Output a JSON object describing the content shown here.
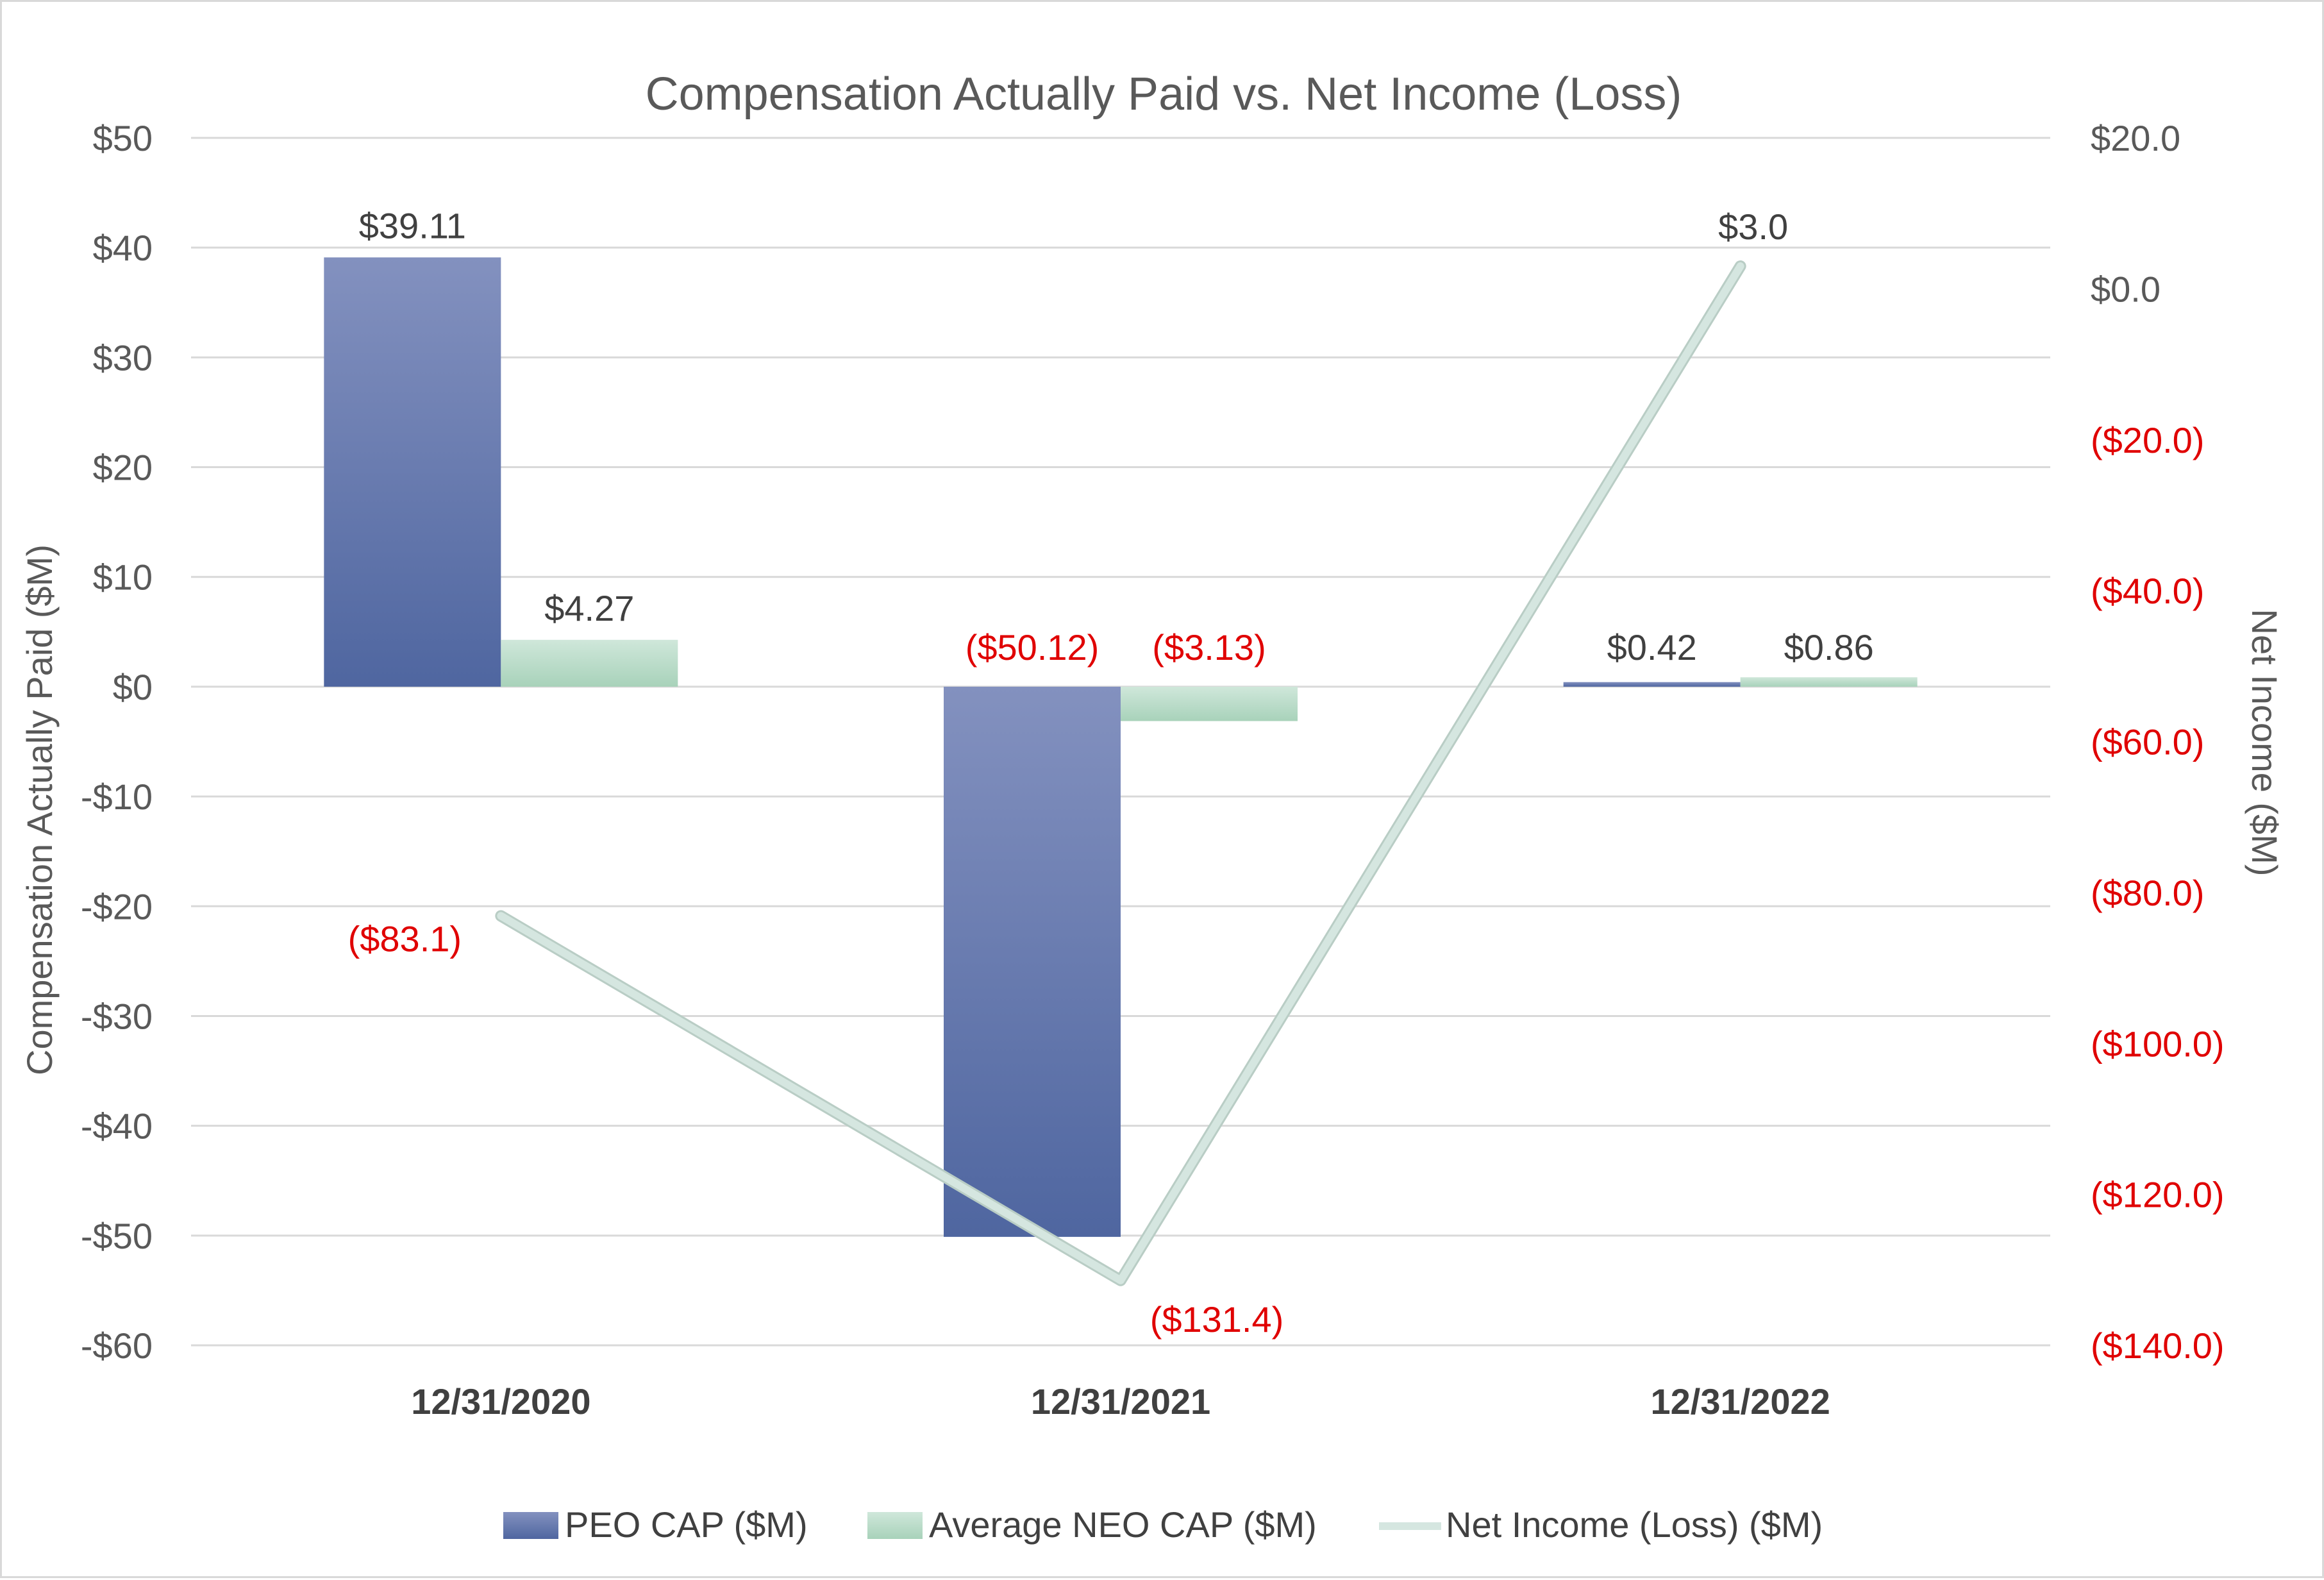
{
  "chart_data": {
    "type": "bar",
    "title": "Compensation Actually Paid vs. Net Income (Loss)",
    "categories": [
      "12/31/2020",
      "12/31/2021",
      "12/31/2022"
    ],
    "ylabel": "Compensation Actually Paid ($M)",
    "y2label": "Net Income ($M)",
    "ylim": [
      -60,
      50
    ],
    "y2lim": [
      -140,
      20
    ],
    "yticks": [
      {
        "value": 50,
        "label": "$50"
      },
      {
        "value": 40,
        "label": "$40"
      },
      {
        "value": 30,
        "label": "$30"
      },
      {
        "value": 20,
        "label": "$20"
      },
      {
        "value": 10,
        "label": "$10"
      },
      {
        "value": 0,
        "label": "$0"
      },
      {
        "value": -10,
        "label": "-$10"
      },
      {
        "value": -20,
        "label": "-$20"
      },
      {
        "value": -30,
        "label": "-$30"
      },
      {
        "value": -40,
        "label": "-$40"
      },
      {
        "value": -50,
        "label": "-$50"
      },
      {
        "value": -60,
        "label": "-$60"
      }
    ],
    "y2ticks": [
      {
        "value": 20,
        "label": "$20.0"
      },
      {
        "value": 0,
        "label": "$0.0"
      },
      {
        "value": -20,
        "label": "($20.0)"
      },
      {
        "value": -40,
        "label": "($40.0)"
      },
      {
        "value": -60,
        "label": "($60.0)"
      },
      {
        "value": -80,
        "label": "($80.0)"
      },
      {
        "value": -100,
        "label": "($100.0)"
      },
      {
        "value": -120,
        "label": "($120.0)"
      },
      {
        "value": -140,
        "label": "($140.0)"
      }
    ],
    "grid": true,
    "legend_position": "bottom",
    "series": [
      {
        "name": "PEO CAP ($M)",
        "kind": "bar",
        "axis": "left",
        "values": [
          39.11,
          -50.12,
          0.42
        ],
        "labels": [
          "$39.11",
          "($50.12)",
          "$0.42"
        ]
      },
      {
        "name": "Average NEO CAP ($M)",
        "kind": "bar",
        "axis": "left",
        "values": [
          4.27,
          -3.13,
          0.86
        ],
        "labels": [
          "$4.27",
          "($3.13)",
          "$0.86"
        ]
      },
      {
        "name": "Net Income (Loss) ($M)",
        "kind": "line",
        "axis": "right",
        "values": [
          -83.1,
          -131.4,
          3.0
        ],
        "labels": [
          "($83.1)",
          "($131.4)",
          "$3.0"
        ]
      }
    ]
  },
  "colors": {
    "peo_bar_top": "#8391bf",
    "peo_bar_bottom": "#4f66a0",
    "neo_bar_top": "#cfe7da",
    "neo_bar_bottom": "#a8d2ba",
    "line": "#d5e6e0",
    "line_outline": "#b9cdc5",
    "text": "#404040",
    "title": "#595959",
    "negative": "#e00000",
    "grid": "#d9d9d9",
    "category": "#404040"
  }
}
